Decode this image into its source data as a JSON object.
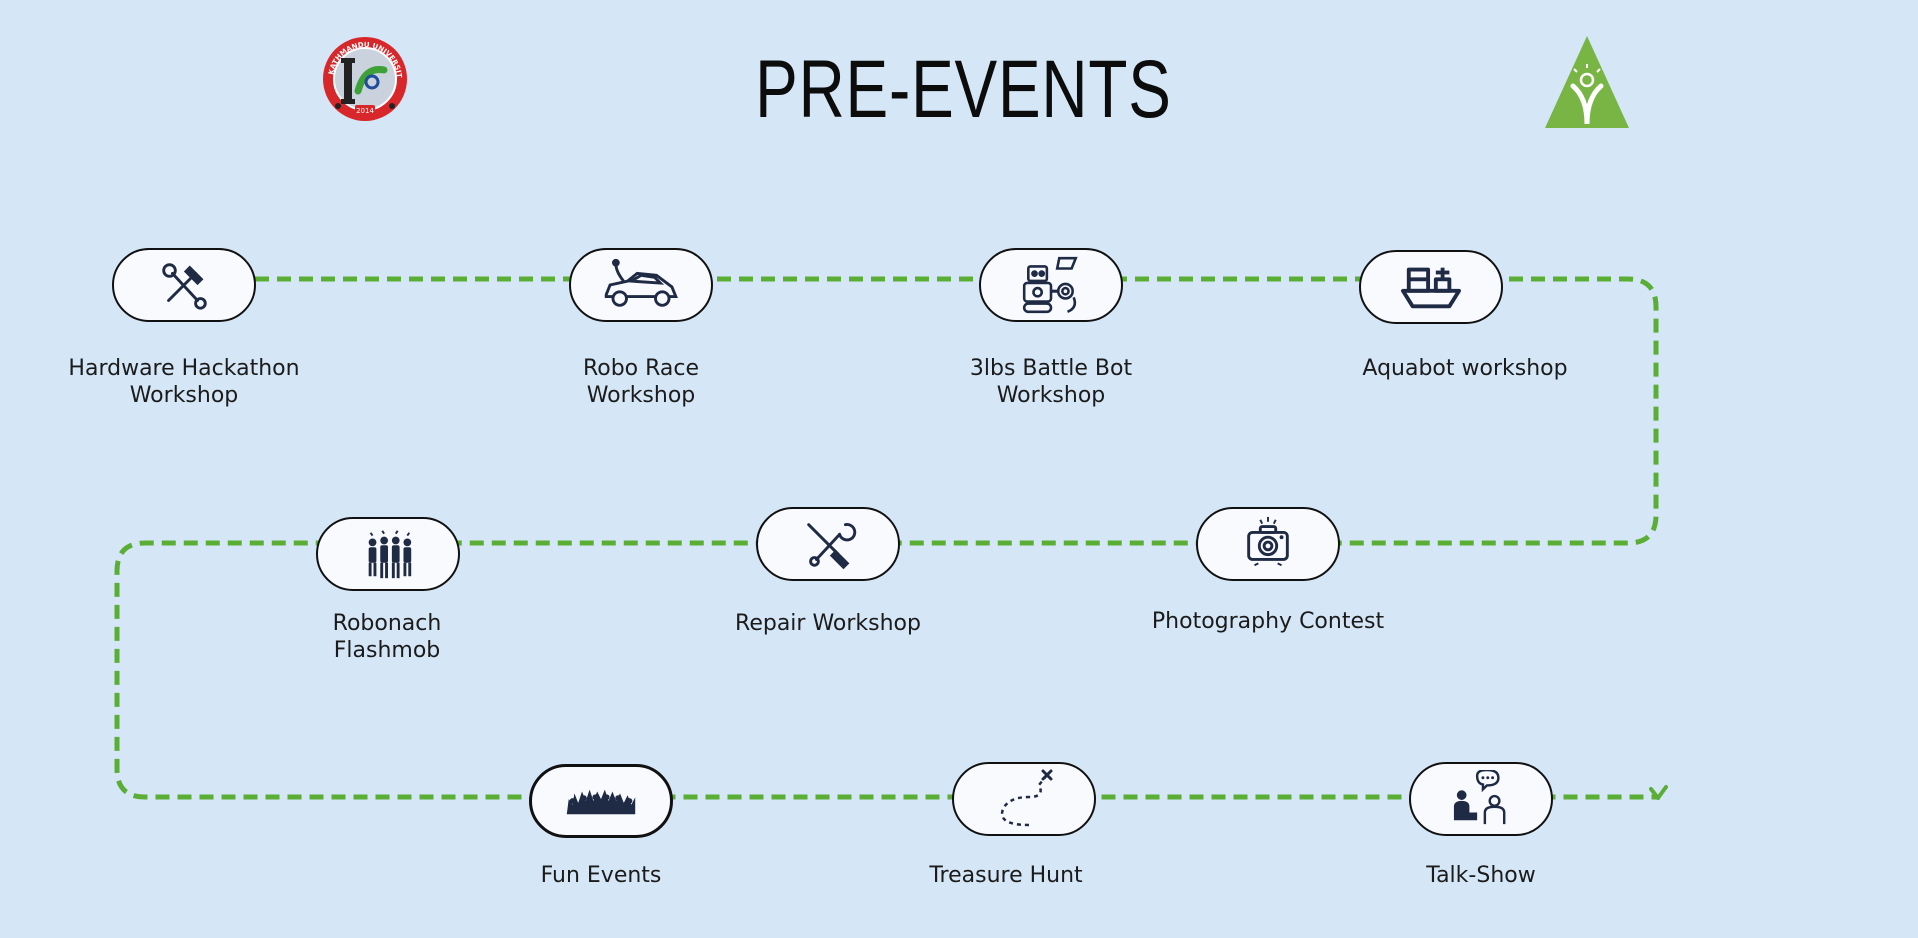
{
  "title": "PRE-EVENTS",
  "colors": {
    "background": "#d5e7f7",
    "path": "#5aad35",
    "node_border": "#111111",
    "icon": "#1f2a44"
  },
  "logos": {
    "left": {
      "icon": "robotics-club-seal-logo",
      "seal_text": "KATHMANDU UNIVERSITY ROBOTICS CLUB",
      "year": "2014"
    },
    "right": {
      "icon": "green-triangle-lightbulb-logo"
    }
  },
  "events": [
    {
      "label_line1": "Hardware Hackathon",
      "label_line2": "Workshop",
      "icon": "hammer-wrench-icon"
    },
    {
      "label_line1": "Robo Race",
      "label_line2": "Workshop",
      "icon": "race-car-icon"
    },
    {
      "label_line1": "3lbs Battle Bot",
      "label_line2": "Workshop",
      "icon": "robot-gear-icon"
    },
    {
      "label_line1": "Aquabot workshop",
      "label_line2": "",
      "icon": "boat-icon"
    },
    {
      "label_line1": "Robonach",
      "label_line2": "Flashmob",
      "icon": "dancing-crowd-icon"
    },
    {
      "label_line1": "Repair Workshop",
      "label_line2": "",
      "icon": "screwdriver-wrench-icon"
    },
    {
      "label_line1": "Photography Contest",
      "label_line2": "",
      "icon": "camera-icon"
    },
    {
      "label_line1": "Fun Events",
      "label_line2": "",
      "icon": "cheering-crowd-icon"
    },
    {
      "label_line1": "Treasure Hunt",
      "label_line2": "",
      "icon": "treasure-map-path-icon"
    },
    {
      "label_line1": "Talk-Show",
      "label_line2": "",
      "icon": "talk-show-icon"
    }
  ]
}
